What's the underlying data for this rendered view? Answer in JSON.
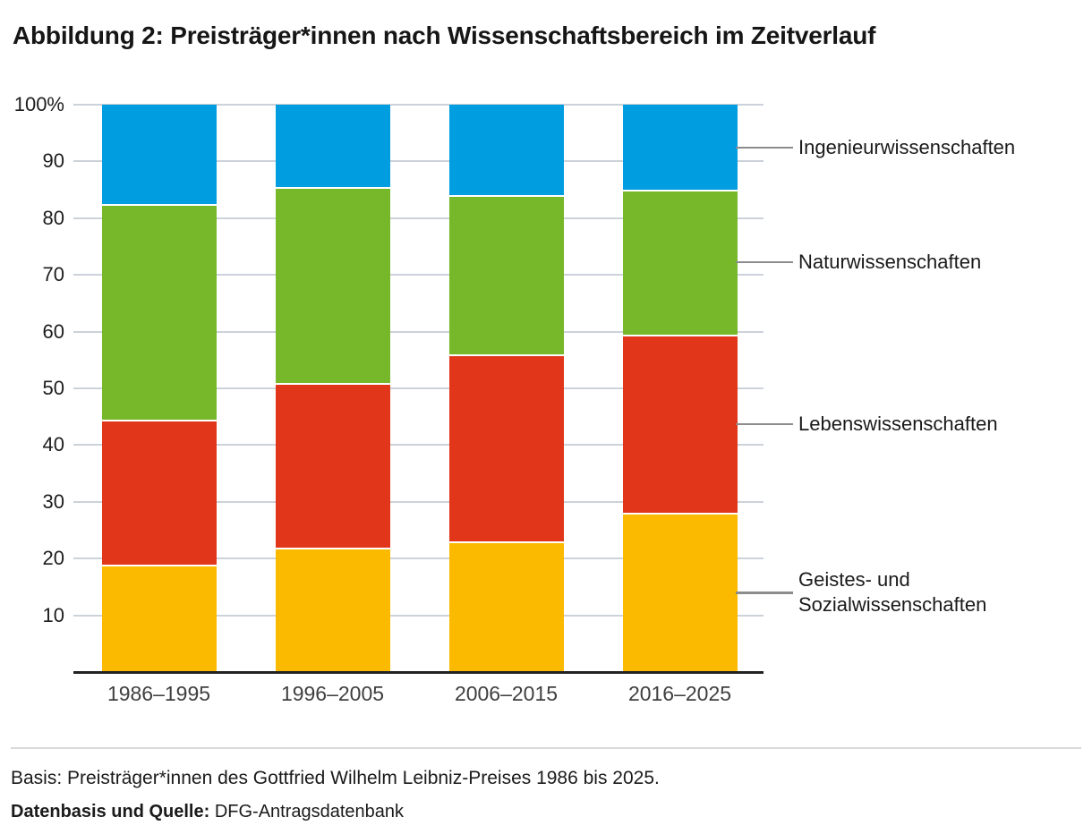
{
  "title": "Abbildung 2: Preisträger*innen nach Wissenschaftsbereich im Zeitverlauf",
  "footer": {
    "basis": "Basis: Preisträger*innen des Gottfried Wilhelm Leibniz-Preises 1986 bis 2025.",
    "source_label": "Datenbasis und Quelle:",
    "source_value": "DFG-Antragsdatenbank"
  },
  "chart_data": {
    "type": "bar",
    "stacked": true,
    "percent": true,
    "title": "Abbildung 2: Preisträger*innen nach Wissenschaftsbereich im Zeitverlauf",
    "categories": [
      "1986–1995",
      "1996–2005",
      "2006–2015",
      "2016–2025"
    ],
    "series": [
      {
        "name": "Geistes- und Sozialwissenschaften",
        "color": "#FBBA00",
        "values": [
          19,
          22,
          23,
          28
        ]
      },
      {
        "name": "Lebenswissenschaften",
        "color": "#E2361B",
        "values": [
          25.5,
          29,
          33,
          31.5
        ]
      },
      {
        "name": "Naturwissenschaften",
        "color": "#76B82A",
        "values": [
          38,
          34.5,
          28,
          25.5
        ]
      },
      {
        "name": "Ingenieurwissenschaften",
        "color": "#009EE0",
        "values": [
          17.5,
          14.5,
          16,
          15
        ]
      }
    ],
    "y_ticks": [
      {
        "value": 100,
        "label": "100%"
      },
      {
        "value": 90,
        "label": "90"
      },
      {
        "value": 80,
        "label": "80"
      },
      {
        "value": 70,
        "label": "70"
      },
      {
        "value": 60,
        "label": "60"
      },
      {
        "value": 50,
        "label": "50"
      },
      {
        "value": 40,
        "label": "40"
      },
      {
        "value": 30,
        "label": "30"
      },
      {
        "value": 20,
        "label": "20"
      },
      {
        "value": 10,
        "label": "10"
      }
    ],
    "ylim": [
      0,
      100
    ],
    "xlabel": "",
    "ylabel": "",
    "grid": true,
    "grid_color": "#CCD2D9",
    "axis_color": "#222222",
    "legend_position": "right",
    "legend_connector_color": "#8C8C8C",
    "segment_separator_color": "#FFFFFF"
  }
}
